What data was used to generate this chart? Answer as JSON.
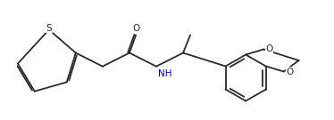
{
  "bg_color": "#ffffff",
  "line_color": "#2a2a2a",
  "atom_color_N": "#0000cc",
  "line_width": 1.3,
  "figsize": [
    3.74,
    1.35
  ],
  "dpi": 100,
  "S_label": "S",
  "O_label": "O",
  "NH_label": "NH",
  "font_size": 7.5
}
